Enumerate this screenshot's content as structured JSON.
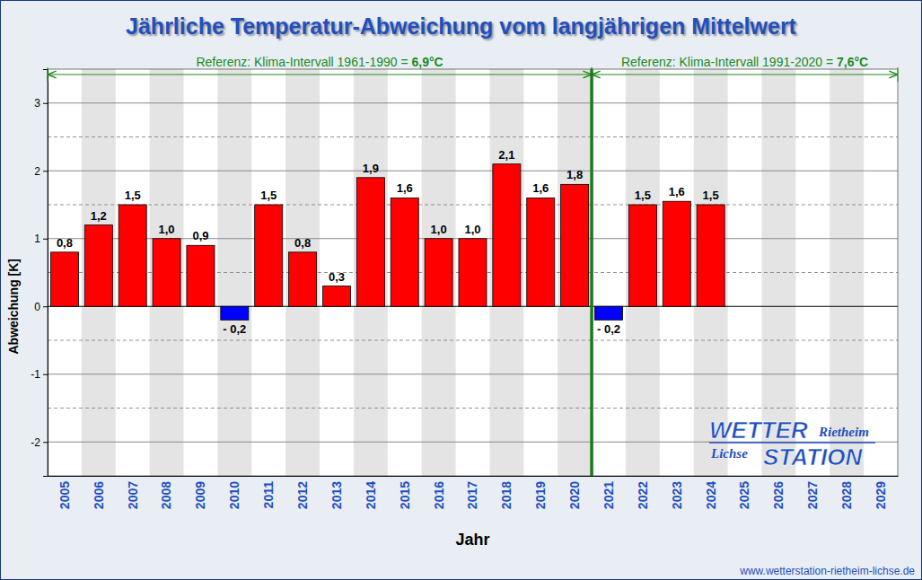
{
  "chart_data": {
    "type": "bar",
    "title": "Jährliche Temperatur-Abweichung vom langjährigen Mittelwert",
    "x_label": "Jahr",
    "y_label": "Abweichung [K]",
    "categories": [
      "2005",
      "2006",
      "2007",
      "2008",
      "2009",
      "2010",
      "2011",
      "2012",
      "2013",
      "2014",
      "2015",
      "2016",
      "2017",
      "2018",
      "2019",
      "2020",
      "2021",
      "2022",
      "2023",
      "2024",
      "2025",
      "2026",
      "2027",
      "2028",
      "2029"
    ],
    "values": [
      0.8,
      1.2,
      1.5,
      1.0,
      0.9,
      -0.2,
      1.5,
      0.8,
      0.3,
      1.9,
      1.6,
      1.0,
      1.0,
      2.1,
      1.6,
      1.8,
      -0.2,
      1.5,
      1.55,
      1.5,
      null,
      null,
      null,
      null,
      null
    ],
    "value_labels": [
      "0,8",
      "1,2",
      "1,5",
      "1,0",
      "0,9",
      "- 0,2",
      "1,5",
      "0,8",
      "0,3",
      "1,9",
      "1,6",
      "1,0",
      "1,0",
      "2,1",
      "1,6",
      "1,8",
      "- 0,2",
      "1,5",
      "1,6",
      "1,5",
      null,
      null,
      null,
      null,
      null
    ],
    "colors": [
      "#ff0000",
      "#ff0000",
      "#ff0000",
      "#ff0000",
      "#ff0000",
      "#0000ff",
      "#ff0000",
      "#ff0000",
      "#ff0000",
      "#ff0000",
      "#ff0000",
      "#ff0000",
      "#ff0000",
      "#ff0000",
      "#ff0000",
      "#ff0000",
      "#0000ff",
      "#ff0000",
      "#ff0000",
      "#ff0000",
      null,
      null,
      null,
      null,
      null
    ],
    "ylim": [
      -2.5,
      3.5
    ],
    "yticks": [
      -2,
      -1,
      0,
      1,
      2,
      3
    ],
    "grid": true,
    "data_labels": true,
    "annotations": [
      {
        "text": "Referenz: Klima-Intervall 1961-1990 = ",
        "value_label": "6,9°C",
        "start": "2005",
        "end": "2020"
      },
      {
        "text": "Referenz: Klima-Intervall 1991-2020 = ",
        "value_label": "7,6°C",
        "start": "2021",
        "end": "2029"
      }
    ],
    "logo": [
      "WETTER",
      "Rietheim",
      "Lichse",
      "STATION"
    ],
    "source": "www.wetterstation-rietheim-lichse.de"
  }
}
